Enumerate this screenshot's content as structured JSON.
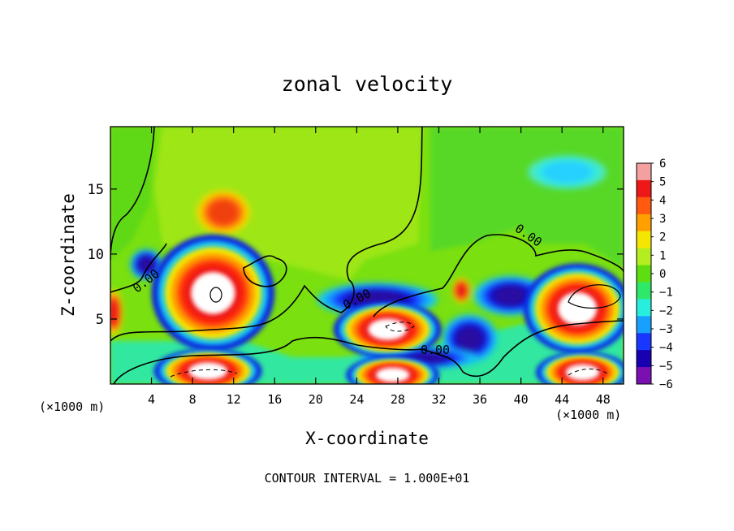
{
  "chart_data": {
    "type": "heatmap",
    "title": "zonal velocity",
    "xlabel": "X-coordinate",
    "ylabel": "Z-coordinate",
    "x_unit_left": "(×1000 m)",
    "x_unit_right": "(×1000 m)",
    "x_ticks": [
      4,
      8,
      12,
      16,
      20,
      24,
      28,
      32,
      36,
      40,
      44,
      48
    ],
    "y_ticks": [
      5,
      10,
      15
    ],
    "xlim": [
      0,
      50
    ],
    "ylim": [
      0,
      19.8
    ],
    "contour_label": "0.00",
    "footer": "CONTOUR INTERVAL = 1.000E+01",
    "colorbar": {
      "ticks": [
        "6",
        "5",
        "4",
        "3",
        "2",
        "1",
        "0",
        "−1",
        "−2",
        "−3",
        "−4",
        "−5",
        "−6"
      ],
      "colors": [
        "#f4a0a0",
        "#ee1818",
        "#ff5a10",
        "#ffa000",
        "#f4e600",
        "#b4ee20",
        "#5ede10",
        "#2ee868",
        "#28eede",
        "#18a0ff",
        "#1838ff",
        "#1800b0",
        "#7a10b0"
      ]
    },
    "features": [
      {
        "kind": "white",
        "x": 10,
        "y": 7,
        "rx": 4,
        "ry": 3
      },
      {
        "kind": "white",
        "x": 27,
        "y": 4.2,
        "rx": 3.5,
        "ry": 1.4
      },
      {
        "kind": "white",
        "x": 45.5,
        "y": 5.8,
        "rx": 3.5,
        "ry": 2.3
      },
      {
        "kind": "white",
        "x": 9.5,
        "y": 1.0,
        "rx": 3.5,
        "ry": 1.1
      },
      {
        "kind": "white",
        "x": 27.5,
        "y": 0.7,
        "rx": 3.0,
        "ry": 0.9
      },
      {
        "kind": "white",
        "x": 46,
        "y": 0.9,
        "rx": 3.0,
        "ry": 1.0
      },
      {
        "kind": "orange",
        "x": 11,
        "y": 13.2,
        "rx": 2.5,
        "ry": 1.6
      },
      {
        "kind": "cyan",
        "x": 44.5,
        "y": 16.3,
        "rx": 4.5,
        "ry": 1.4
      },
      {
        "kind": "blue",
        "x": 26,
        "y": 6.5,
        "rx": 5,
        "ry": 1.0
      },
      {
        "kind": "blue",
        "x": 39,
        "y": 6.8,
        "rx": 3,
        "ry": 1.2
      },
      {
        "kind": "blue",
        "x": 35,
        "y": 3.5,
        "rx": 2.2,
        "ry": 1.5
      },
      {
        "kind": "blue",
        "x": 3.5,
        "y": 9.2,
        "rx": 1.2,
        "ry": 0.9
      },
      {
        "kind": "blue",
        "x": 30,
        "y": 2.0,
        "rx": 5,
        "ry": 0.6
      },
      {
        "kind": "red",
        "x": 34.2,
        "y": 7.2,
        "rx": 0.8,
        "ry": 1.0
      },
      {
        "kind": "red",
        "x": 0.3,
        "y": 5.5,
        "rx": 0.8,
        "ry": 2.0
      }
    ]
  }
}
